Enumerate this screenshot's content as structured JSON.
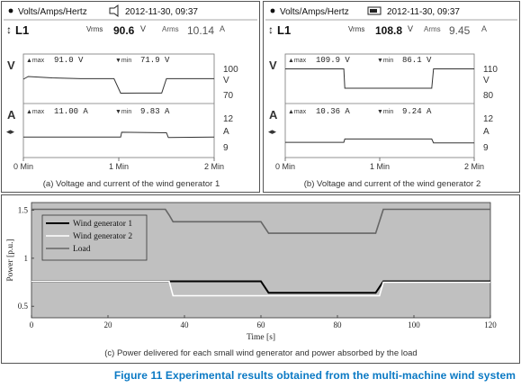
{
  "figure_title": "Figure 11 Experimental results obtained from the multi-machine wind system",
  "meters": [
    {
      "id": "a",
      "header_mode": "Volts/Amps/Hertz",
      "header_datetime": "2012-11-30, 09:37",
      "channel": "L1",
      "vrms_label": "Vrms",
      "vrms_value": "90.6",
      "vrms_unit": "V",
      "arms_label": "Arms",
      "arms_value": "10.14",
      "arms_unit": "A",
      "v_label": "V",
      "a_label": "A",
      "v_max": "91.0 V",
      "v_min": "71.9 V",
      "a_max": "11.00 A",
      "a_min": "9.83 A",
      "v_scale": [
        "100",
        "V",
        "70"
      ],
      "a_scale": [
        "12",
        "A",
        "9"
      ],
      "time_ticks": [
        "0 Min",
        "1 Min",
        "2 Min"
      ],
      "caption": "(a) Voltage and current of the wind generator 1",
      "voltage_trace": [
        [
          0,
          88
        ],
        [
          0.05,
          91
        ],
        [
          0.3,
          89.5
        ],
        [
          0.6,
          88.6
        ],
        [
          0.95,
          88.6
        ],
        [
          1.02,
          72.5
        ],
        [
          1.2,
          72.6
        ],
        [
          1.45,
          72.6
        ],
        [
          1.5,
          88.6
        ],
        [
          2,
          88.6
        ]
      ],
      "current_trace": [
        [
          0,
          10.1
        ],
        [
          1.02,
          10.1
        ],
        [
          1.03,
          10.6
        ],
        [
          1.5,
          10.55
        ],
        [
          1.52,
          10.05
        ],
        [
          2,
          10.1
        ]
      ]
    },
    {
      "id": "b",
      "header_mode": "Volts/Amps/Hertz",
      "header_datetime": "2012-11-30, 09:37",
      "channel": "L1",
      "vrms_label": "Vrms",
      "vrms_value": "108.8",
      "vrms_unit": "V",
      "arms_label": "Arms",
      "arms_value": "9.45",
      "arms_unit": "A",
      "v_label": "V",
      "a_label": "A",
      "v_max": "109.9 V",
      "v_min": "86.1 V",
      "a_max": "10.36 A",
      "a_min": "9.24 A",
      "v_scale": [
        "110",
        "V",
        "80"
      ],
      "a_scale": [
        "12",
        "A",
        "9"
      ],
      "time_ticks": [
        "0 Min",
        "1 Min",
        "2 Min"
      ],
      "caption": "(b) Voltage and current of the wind generator 2",
      "voltage_trace": [
        [
          0,
          109.5
        ],
        [
          0.62,
          109.5
        ],
        [
          0.63,
          88
        ],
        [
          1.55,
          88
        ],
        [
          1.57,
          109.5
        ],
        [
          2,
          109.5
        ]
      ],
      "current_trace": [
        [
          0,
          9.55
        ],
        [
          0.62,
          9.55
        ],
        [
          0.63,
          9.9
        ],
        [
          1.55,
          9.9
        ],
        [
          1.57,
          9.5
        ],
        [
          2,
          9.5
        ]
      ]
    }
  ],
  "chart_data": {
    "type": "line",
    "xlabel": "Time [s]",
    "ylabel": "Power [p.u.]",
    "xlim": [
      0,
      120
    ],
    "ylim": [
      0.38,
      1.58
    ],
    "xticks": [
      "0",
      "20",
      "40",
      "60",
      "80",
      "100",
      "120"
    ],
    "yticks": [
      "0.5",
      "1",
      "1.5"
    ],
    "xtick_values": [
      0,
      20,
      40,
      60,
      80,
      100,
      120
    ],
    "ytick_values": [
      0.5,
      1,
      1.5
    ],
    "grid": false,
    "legend_position": "upper-left",
    "background": "#c0c0c0",
    "series": [
      {
        "name": "Wind generator 1",
        "color": "#000000",
        "x": [
          0,
          36,
          37,
          60,
          62,
          90,
          92,
          120
        ],
        "y": [
          0.76,
          0.76,
          0.76,
          0.76,
          0.64,
          0.64,
          0.76,
          0.76
        ]
      },
      {
        "name": "Wind generator 2",
        "color": "#ffffff",
        "x": [
          0,
          36,
          37,
          91,
          92,
          120
        ],
        "y": [
          0.76,
          0.76,
          0.61,
          0.61,
          0.75,
          0.75
        ]
      },
      {
        "name": "Load",
        "color": "#666666",
        "x": [
          0,
          35,
          36,
          37,
          38,
          60,
          62,
          90,
          92,
          120
        ],
        "y": [
          1.51,
          1.51,
          1.45,
          1.38,
          1.38,
          1.38,
          1.26,
          1.26,
          1.51,
          1.51
        ]
      }
    ],
    "caption": "(c) Power delivered for each small wind generator and power absorbed by the load"
  }
}
